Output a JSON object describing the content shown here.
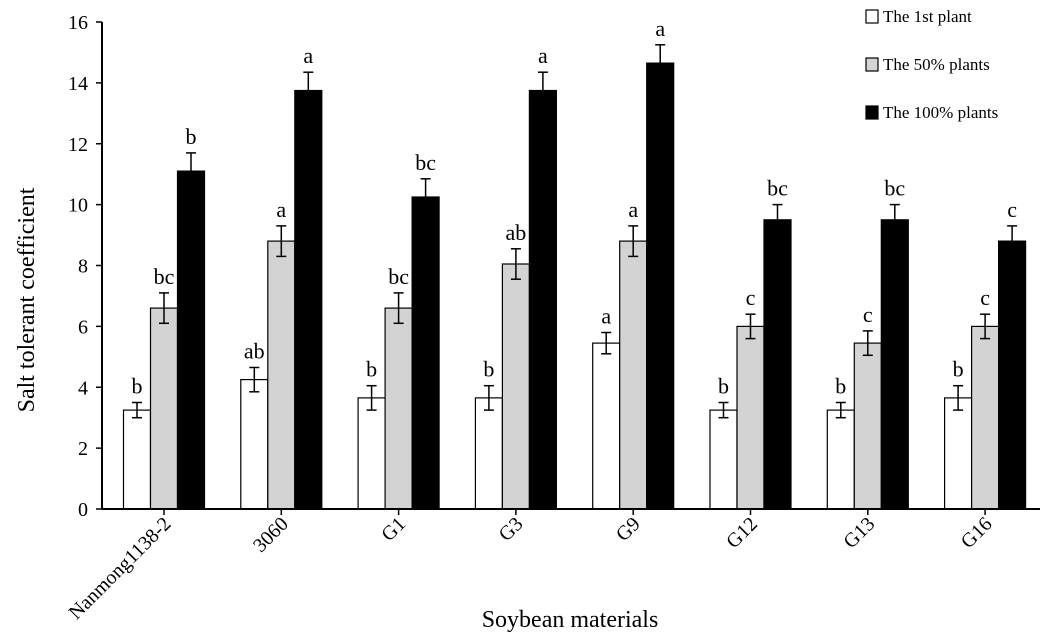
{
  "chart_data": {
    "type": "bar",
    "title": "",
    "xlabel": "Soybean materials",
    "ylabel": "Salt tolerant coefficient",
    "ylim": [
      0,
      16
    ],
    "yticks": [
      "0",
      "2",
      "4",
      "6",
      "8",
      "10",
      "12",
      "14",
      "16"
    ],
    "categories": [
      "Nanmong1138-2",
      "3060",
      "G1",
      "G3",
      "G9",
      "G12",
      "G13",
      "G16"
    ],
    "series": [
      {
        "name": "The 1st plant",
        "color": "#ffffff",
        "values": [
          3.25,
          4.25,
          3.65,
          3.65,
          5.45,
          3.25,
          3.25,
          3.65
        ],
        "errors": [
          0.25,
          0.4,
          0.4,
          0.4,
          0.35,
          0.25,
          0.25,
          0.4
        ],
        "letters": [
          "b",
          "ab",
          "b",
          "b",
          "a",
          "b",
          "b",
          "b"
        ]
      },
      {
        "name": "The 50% plants",
        "color": "#d3d3d3",
        "values": [
          6.6,
          8.8,
          6.6,
          8.05,
          8.8,
          6.0,
          5.45,
          6.0
        ],
        "errors": [
          0.5,
          0.5,
          0.5,
          0.5,
          0.5,
          0.4,
          0.4,
          0.4
        ],
        "letters": [
          "bc",
          "a",
          "bc",
          "ab",
          "a",
          "c",
          "c",
          "c"
        ]
      },
      {
        "name": "The 100% plants",
        "color": "#000000",
        "values": [
          11.1,
          13.75,
          10.25,
          13.75,
          14.65,
          9.5,
          9.5,
          8.8
        ],
        "errors": [
          0.6,
          0.6,
          0.6,
          0.6,
          0.6,
          0.5,
          0.5,
          0.5
        ],
        "letters": [
          "b",
          "a",
          "bc",
          "a",
          "a",
          "bc",
          "bc",
          "c"
        ]
      }
    ],
    "legend_position": "top-right",
    "grid": false
  }
}
